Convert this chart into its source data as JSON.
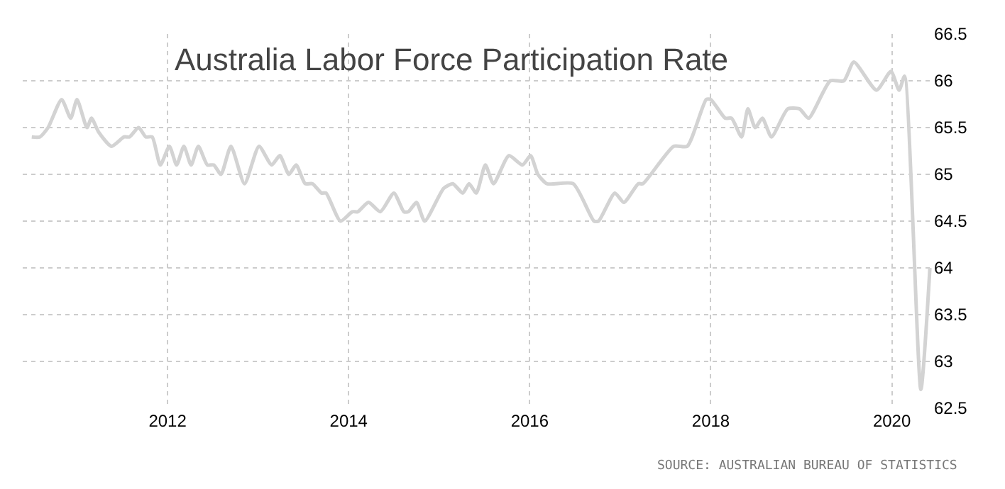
{
  "chart_data": {
    "type": "line",
    "title": "Australia Labor Force Participation Rate",
    "annotations": [
      "SOURCE: AUSTRALIAN BUREAU OF STATISTICS"
    ],
    "x": [
      2010.5,
      2010.59,
      2010.68,
      2010.83,
      2010.93,
      2011.0,
      2011.11,
      2011.16,
      2011.24,
      2011.38,
      2011.52,
      2011.58,
      2011.68,
      2011.76,
      2011.83,
      2011.92,
      2012.02,
      2012.1,
      2012.18,
      2012.26,
      2012.34,
      2012.44,
      2012.51,
      2012.59,
      2012.7,
      2012.85,
      2013.01,
      2013.15,
      2013.24,
      2013.34,
      2013.42,
      2013.52,
      2013.6,
      2013.7,
      2013.75,
      2013.91,
      2014.04,
      2014.1,
      2014.22,
      2014.35,
      2014.5,
      2014.61,
      2014.66,
      2014.75,
      2014.84,
      2015.05,
      2015.15,
      2015.26,
      2015.33,
      2015.41,
      2015.51,
      2015.6,
      2015.77,
      2015.92,
      2016.01,
      2016.09,
      2016.19,
      2016.48,
      2016.71,
      2016.76,
      2016.94,
      2017.04,
      2017.2,
      2017.25,
      2017.59,
      2017.74,
      2017.95,
      2018.0,
      2018.16,
      2018.23,
      2018.34,
      2018.41,
      2018.49,
      2018.57,
      2018.67,
      2018.85,
      2018.98,
      2019.08,
      2019.32,
      2019.47,
      2019.58,
      2019.83,
      2019.99,
      2020.08,
      2020.14,
      2020.32,
      2020.42
    ],
    "series": [
      {
        "color": "#d3d3d3",
        "values": [
          65.4,
          65.4,
          65.5,
          65.8,
          65.6,
          65.8,
          65.5,
          65.6,
          65.45,
          65.3,
          65.4,
          65.4,
          65.5,
          65.4,
          65.4,
          65.1,
          65.3,
          65.1,
          65.3,
          65.1,
          65.3,
          65.1,
          65.1,
          65.0,
          65.3,
          64.9,
          65.3,
          65.1,
          65.2,
          65.0,
          65.1,
          64.9,
          64.9,
          64.8,
          64.8,
          64.5,
          64.6,
          64.6,
          64.7,
          64.6,
          64.8,
          64.6,
          64.6,
          64.7,
          64.5,
          64.85,
          64.9,
          64.8,
          64.9,
          64.8,
          65.1,
          64.9,
          65.2,
          65.1,
          65.2,
          65.0,
          64.9,
          64.9,
          64.5,
          64.5,
          64.8,
          64.7,
          64.9,
          64.9,
          65.3,
          65.3,
          65.8,
          65.8,
          65.6,
          65.6,
          65.4,
          65.7,
          65.5,
          65.6,
          65.4,
          65.7,
          65.7,
          65.6,
          66.0,
          66.0,
          66.2,
          65.9,
          66.1,
          65.9,
          66.05,
          62.7,
          64.0
        ]
      }
    ],
    "xlim": [
      2010.4,
      2020.45
    ],
    "xticks": [
      2012,
      2014,
      2016,
      2018,
      2020
    ],
    "ylim": [
      62.5,
      66.5
    ],
    "yticks": [
      62.5,
      63,
      63.5,
      64,
      64.5,
      65,
      65.5,
      66,
      66.5
    ],
    "grid": true,
    "marker": "none",
    "line_style": "solid"
  }
}
